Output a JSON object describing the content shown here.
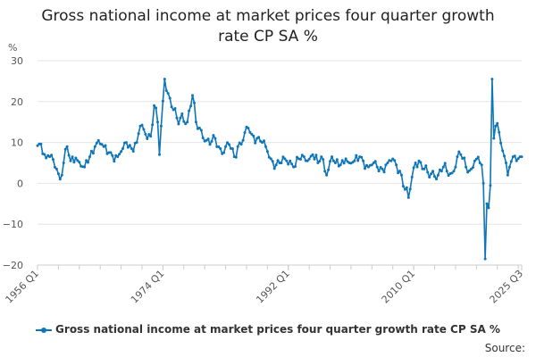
{
  "chart_data": {
    "type": "line",
    "title_lines": [
      "Gross national income at market prices four quarter growth",
      "rate CP SA %"
    ],
    "unit_label": "%",
    "ylim": [
      -20,
      30
    ],
    "y_ticks": [
      -20,
      -10,
      0,
      10,
      20,
      30
    ],
    "grid": "horizontal",
    "x_tick_labels": [
      "1956 Q1",
      "1974 Q1",
      "1992 Q1",
      "2010 Q1",
      "2025 Q3"
    ],
    "legend_position": "bottom",
    "series": [
      {
        "name": "Gross national income at market prices four quarter growth rate CP SA %",
        "color": "#0e75b8",
        "start": "1956 Q1",
        "end": "2025 Q3",
        "anchors": [
          [
            "1956 Q1",
            9.2
          ],
          [
            "1956 Q3",
            9.6
          ],
          [
            "1957 Q2",
            6.2
          ],
          [
            "1957 Q4",
            6.5
          ],
          [
            "1958 Q2",
            5.8
          ],
          [
            "1958 Q4",
            3.5
          ],
          [
            "1959 Q2",
            1.0
          ],
          [
            "1959 Q4",
            5.0
          ],
          [
            "1960 Q2",
            9.0
          ],
          [
            "1960 Q4",
            5.5
          ],
          [
            "1961 Q3",
            6.2
          ],
          [
            "1962 Q2",
            4.2
          ],
          [
            "1962 Q4",
            4.0
          ],
          [
            "1963 Q3",
            6.5
          ],
          [
            "1964 Q2",
            9.0
          ],
          [
            "1964 Q4",
            10.5
          ],
          [
            "1965 Q3",
            9.0
          ],
          [
            "1966 Q2",
            7.5
          ],
          [
            "1966 Q4",
            6.8
          ],
          [
            "1967 Q3",
            6.5
          ],
          [
            "1968 Q2",
            8.5
          ],
          [
            "1968 Q4",
            10.0
          ],
          [
            "1969 Q3",
            8.5
          ],
          [
            "1970 Q2",
            10.0
          ],
          [
            "1970 Q4",
            14.0
          ],
          [
            "1971 Q3",
            12.0
          ],
          [
            "1972 Q2",
            11.5
          ],
          [
            "1972 Q4",
            19.0
          ],
          [
            "1973 Q2",
            15.0
          ],
          [
            "1973 Q3",
            7.0
          ],
          [
            "1973 Q4",
            14.0
          ],
          [
            "1974 Q2",
            25.5
          ],
          [
            "1974 Q4",
            22.0
          ],
          [
            "1975 Q3",
            18.0
          ],
          [
            "1976 Q2",
            14.5
          ],
          [
            "1976 Q4",
            17.0
          ],
          [
            "1977 Q3",
            15.0
          ],
          [
            "1978 Q2",
            21.5
          ],
          [
            "1978 Q4",
            15.0
          ],
          [
            "1979 Q3",
            13.0
          ],
          [
            "1980 Q2",
            10.5
          ],
          [
            "1980 Q4",
            9.5
          ],
          [
            "1981 Q3",
            11.0
          ],
          [
            "1982 Q2",
            8.5
          ],
          [
            "1982 Q4",
            7.5
          ],
          [
            "1983 Q3",
            9.5
          ],
          [
            "1984 Q2",
            6.5
          ],
          [
            "1984 Q4",
            9.0
          ],
          [
            "1985 Q3",
            10.5
          ],
          [
            "1986 Q2",
            13.5
          ],
          [
            "1986 Q4",
            12.0
          ],
          [
            "1987 Q3",
            11.0
          ],
          [
            "1988 Q2",
            10.0
          ],
          [
            "1988 Q4",
            9.0
          ],
          [
            "1989 Q3",
            6.0
          ],
          [
            "1990 Q2",
            4.5
          ],
          [
            "1990 Q4",
            5.0
          ],
          [
            "1991 Q3",
            6.0
          ],
          [
            "1992 Q2",
            5.5
          ],
          [
            "1992 Q4",
            4.0
          ],
          [
            "1993 Q3",
            6.0
          ],
          [
            "1994 Q2",
            6.5
          ],
          [
            "1994 Q4",
            5.5
          ],
          [
            "1995 Q3",
            7.0
          ],
          [
            "1996 Q2",
            5.0
          ],
          [
            "1996 Q4",
            6.5
          ],
          [
            "1997 Q3",
            2.0
          ],
          [
            "1998 Q2",
            6.5
          ],
          [
            "1998 Q4",
            5.0
          ],
          [
            "1999 Q3",
            4.5
          ],
          [
            "2000 Q2",
            6.0
          ],
          [
            "2000 Q4",
            5.0
          ],
          [
            "2001 Q3",
            5.5
          ],
          [
            "2002 Q2",
            6.5
          ],
          [
            "2002 Q4",
            5.5
          ],
          [
            "2003 Q3",
            4.0
          ],
          [
            "2004 Q2",
            5.0
          ],
          [
            "2004 Q4",
            4.0
          ],
          [
            "2005 Q3",
            3.5
          ],
          [
            "2006 Q2",
            5.0
          ],
          [
            "2006 Q4",
            5.5
          ],
          [
            "2007 Q3",
            4.5
          ],
          [
            "2008 Q2",
            2.0
          ],
          [
            "2008 Q4",
            -1.5
          ],
          [
            "2009 Q2",
            -3.5
          ],
          [
            "2009 Q4",
            1.5
          ],
          [
            "2010 Q2",
            5.0
          ],
          [
            "2010 Q4",
            5.5
          ],
          [
            "2011 Q3",
            3.5
          ],
          [
            "2012 Q2",
            1.5
          ],
          [
            "2012 Q4",
            3.0
          ],
          [
            "2013 Q3",
            2.0
          ],
          [
            "2014 Q2",
            4.0
          ],
          [
            "2014 Q4",
            3.0
          ],
          [
            "2015 Q3",
            2.5
          ],
          [
            "2016 Q2",
            6.5
          ],
          [
            "2016 Q4",
            7.0
          ],
          [
            "2017 Q3",
            4.0
          ],
          [
            "2018 Q2",
            3.5
          ],
          [
            "2018 Q4",
            5.5
          ],
          [
            "2019 Q3",
            5.0
          ],
          [
            "2019 Q4",
            4.5
          ],
          [
            "2020 Q1",
            0.0
          ],
          [
            "2020 Q2",
            -18.5
          ],
          [
            "2020 Q3",
            -5.0
          ],
          [
            "2020 Q4",
            -6.0
          ],
          [
            "2021 Q1",
            -0.5
          ],
          [
            "2021 Q2",
            25.5
          ],
          [
            "2021 Q3",
            11.0
          ],
          [
            "2021 Q4",
            14.0
          ],
          [
            "2022 Q2",
            12.5
          ],
          [
            "2022 Q4",
            8.0
          ],
          [
            "2023 Q2",
            5.0
          ],
          [
            "2023 Q3",
            2.0
          ],
          [
            "2023 Q4",
            4.0
          ],
          [
            "2024 Q2",
            6.5
          ],
          [
            "2024 Q4",
            5.5
          ],
          [
            "2025 Q2",
            6.5
          ],
          [
            "2025 Q3",
            6.5
          ]
        ]
      }
    ]
  },
  "legend": {
    "label": "Gross national income at market prices four quarter growth rate CP SA %"
  },
  "source": "Source:"
}
